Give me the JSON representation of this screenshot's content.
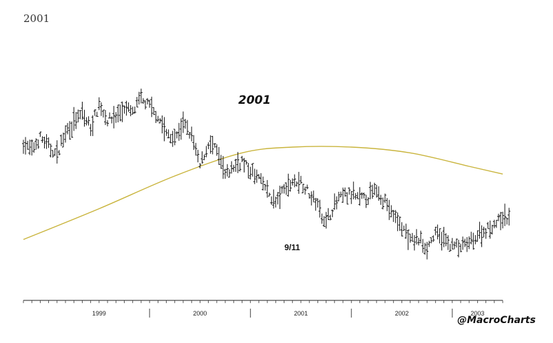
{
  "page": {
    "title": "2001",
    "watermark": "@MacroCharts"
  },
  "chart_data": {
    "type": "line",
    "title": "2001",
    "xlabel": "",
    "ylabel": "",
    "x_range": [
      "1998-10",
      "2003-07"
    ],
    "ylim": [
      0,
      100
    ],
    "grid": false,
    "x_tick_labels": [
      "1999",
      "2000",
      "2001",
      "2002",
      "2003"
    ],
    "annotations": [
      {
        "text": "9/11",
        "x": "2001-09"
      }
    ],
    "colors": {
      "price": "#111111",
      "moving_average": "#c9b43c"
    },
    "series": [
      {
        "style": "bar",
        "x": [
          "1998-10",
          "1998-11",
          "1998-12",
          "1999-01",
          "1999-02",
          "1999-03",
          "1999-04",
          "1999-05",
          "1999-06",
          "1999-07",
          "1999-08",
          "1999-09",
          "1999-10",
          "1999-11",
          "1999-12",
          "2000-01",
          "2000-02",
          "2000-03",
          "2000-04",
          "2000-05",
          "2000-06",
          "2000-07",
          "2000-08",
          "2000-09",
          "2000-10",
          "2000-11",
          "2000-12",
          "2001-01",
          "2001-02",
          "2001-03",
          "2001-04",
          "2001-05",
          "2001-06",
          "2001-07",
          "2001-08",
          "2001-09",
          "2001-10",
          "2001-11",
          "2001-12",
          "2002-01",
          "2002-02",
          "2002-03",
          "2002-04",
          "2002-05",
          "2002-06",
          "2002-07",
          "2002-08",
          "2002-09",
          "2002-10",
          "2002-11",
          "2002-12",
          "2003-01",
          "2003-02",
          "2003-03",
          "2003-04",
          "2003-05",
          "2003-06",
          "2003-07"
        ],
        "values": [
          72,
          68,
          75,
          70,
          66,
          78,
          83,
          87,
          80,
          92,
          84,
          86,
          90,
          88,
          95,
          91,
          86,
          77,
          74,
          82,
          76,
          60,
          72,
          68,
          55,
          60,
          63,
          57,
          54,
          47,
          41,
          48,
          52,
          52,
          46,
          40,
          31,
          40,
          45,
          45,
          43,
          44,
          48,
          42,
          34,
          29,
          21,
          22,
          18,
          25,
          22,
          19,
          18,
          20,
          24,
          27,
          30,
          33
        ]
      },
      {
        "style": "line",
        "x": [
          "1998-10",
          "1999-07",
          "2000-04",
          "2000-12",
          "2001-06",
          "2002-01",
          "2002-08",
          "2003-03",
          "2003-07"
        ],
        "values": [
          22,
          38,
          55,
          67,
          70,
          70,
          67,
          60,
          56
        ]
      }
    ]
  }
}
